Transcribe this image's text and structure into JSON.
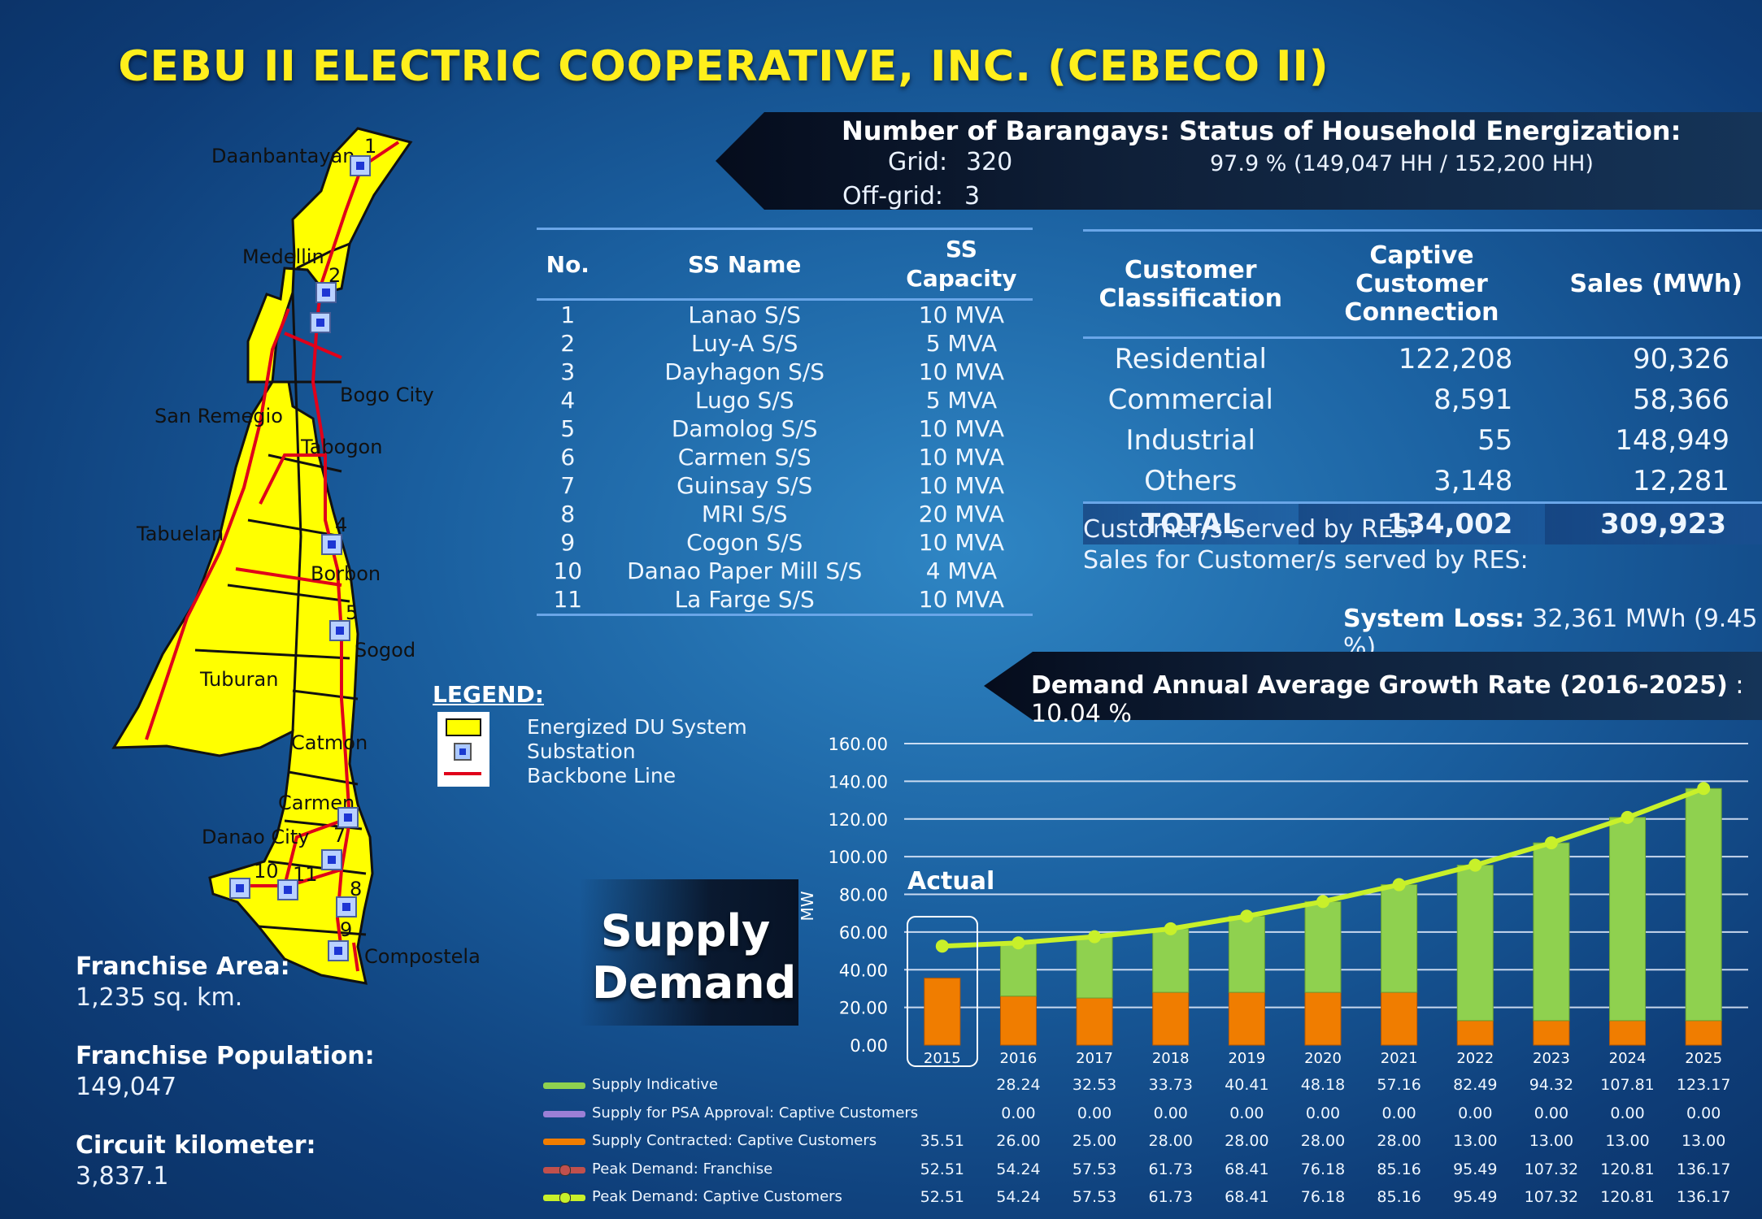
{
  "title": "CEBU II ELECTRIC COOPERATIVE, INC. (CEBECO II)",
  "barangays": {
    "label": "Number of Barangays:",
    "grid_label": "Grid:",
    "grid": "320",
    "offgrid_label": "Off-grid:",
    "offgrid": "3"
  },
  "energization": {
    "label": "Status of Household Energization:",
    "value": "97.9 % (149,047 HH / 152,200 HH)"
  },
  "ss_table": {
    "headers": {
      "no": "No.",
      "name": "SS Name",
      "cap1": "SS",
      "cap2": "Capacity"
    },
    "rows": [
      {
        "no": "1",
        "name": "Lanao S/S",
        "cap": "10 MVA"
      },
      {
        "no": "2",
        "name": "Luy-A S/S",
        "cap": "5 MVA"
      },
      {
        "no": "3",
        "name": "Dayhagon S/S",
        "cap": "10 MVA"
      },
      {
        "no": "4",
        "name": "Lugo S/S",
        "cap": "5 MVA"
      },
      {
        "no": "5",
        "name": "Damolog S/S",
        "cap": "10 MVA"
      },
      {
        "no": "6",
        "name": "Carmen S/S",
        "cap": "10 MVA"
      },
      {
        "no": "7",
        "name": "Guinsay S/S",
        "cap": "10 MVA"
      },
      {
        "no": "8",
        "name": "MRI S/S",
        "cap": "20 MVA"
      },
      {
        "no": "9",
        "name": "Cogon S/S",
        "cap": "10 MVA"
      },
      {
        "no": "10",
        "name": "Danao Paper Mill S/S",
        "cap": "4 MVA"
      },
      {
        "no": "11",
        "name": "La Farge S/S",
        "cap": "10 MVA"
      }
    ]
  },
  "customer_table": {
    "headers": {
      "cls1": "Customer",
      "cls2": "Classification",
      "conn1": "Captive Customer",
      "conn2": "Connection",
      "sales": "Sales (MWh)"
    },
    "rows": [
      {
        "cls": "Residential",
        "conn": "122,208",
        "sales": "90,326"
      },
      {
        "cls": "Commercial",
        "conn": "8,591",
        "sales": "58,366"
      },
      {
        "cls": "Industrial",
        "conn": "55",
        "sales": "148,949"
      },
      {
        "cls": "Others",
        "conn": "3,148",
        "sales": "12,281"
      }
    ],
    "total": {
      "cls": "TOTAL",
      "conn": "134,002",
      "sales": "309,923"
    }
  },
  "res": {
    "served": "Customer/s Served by RES:",
    "sales": "Sales for Customer/s served by RES:"
  },
  "system_loss": {
    "label": "System Loss:",
    "value": "32,361 MWh (9.45 %)"
  },
  "growth": {
    "label": "Demand Annual Average Growth Rate (2016-2025)",
    "value": ": 10.04 %"
  },
  "legend": {
    "title": "LEGEND:",
    "items": [
      "Energized DU System",
      "Substation",
      "Backbone Line"
    ]
  },
  "map_labels": {
    "daanbantayan": "Daanbantayan",
    "medellin": "Medellin",
    "bogo": "Bogo City",
    "san_remegio": "San Remegio",
    "tabogon": "Tabogon",
    "tabuelan": "Tabuelan",
    "borbon": "Borbon",
    "sogod": "Sogod",
    "tuburan": "Tuburan",
    "catmon": "Catmon",
    "carmen": "Carmen",
    "danao": "Danao City",
    "compostela": "Compostela"
  },
  "map_numbers": [
    "1",
    "2",
    "4",
    "5",
    "7",
    "8",
    "9",
    "10",
    "11"
  ],
  "franchise": {
    "area_label": "Franchise Area:",
    "area": "1,235 sq. km.",
    "pop_label": "Franchise Population:",
    "pop": "149,047",
    "ckm_label": "Circuit kilometer:",
    "ckm": "3,837.1"
  },
  "supply_demand": {
    "line1": "Supply",
    "line2": "Demand"
  },
  "colors": {
    "supply_indicative": "#8fd14f",
    "supply_contracted": "#f07d00",
    "peak_captive": "#c8f02a",
    "peak_franchise": "#c0504d",
    "psa": "#9b7fd6"
  },
  "chart_data": {
    "type": "bar",
    "ylabel": "MW",
    "ylim": [
      0,
      160
    ],
    "yticks": [
      "0.00",
      "20.00",
      "40.00",
      "60.00",
      "80.00",
      "100.00",
      "120.00",
      "140.00",
      "160.00"
    ],
    "annotation": "Actual",
    "categories": [
      "2015",
      "2016",
      "2017",
      "2018",
      "2019",
      "2020",
      "2021",
      "2022",
      "2023",
      "2024",
      "2025"
    ],
    "series": [
      {
        "name": "Supply Indicative",
        "values": [
          null,
          28.24,
          32.53,
          33.73,
          40.41,
          48.18,
          57.16,
          82.49,
          94.32,
          107.81,
          123.17
        ],
        "labels": [
          "",
          "28.24",
          "32.53",
          "33.73",
          "40.41",
          "48.18",
          "57.16",
          "82.49",
          "94.32",
          "107.81",
          "123.17"
        ]
      },
      {
        "name": "Supply for PSA Approval:  Captive Customers",
        "values": [
          null,
          0,
          0,
          0,
          0,
          0,
          0,
          0,
          0,
          0,
          0
        ],
        "labels": [
          "",
          "0.00",
          "0.00",
          "0.00",
          "0.00",
          "0.00",
          "0.00",
          "0.00",
          "0.00",
          "0.00",
          "0.00"
        ]
      },
      {
        "name": "Supply Contracted:  Captive Customers",
        "values": [
          35.51,
          26.0,
          25.0,
          28.0,
          28.0,
          28.0,
          28.0,
          13.0,
          13.0,
          13.0,
          13.0
        ],
        "labels": [
          "35.51",
          "26.00",
          "25.00",
          "28.00",
          "28.00",
          "28.00",
          "28.00",
          "13.00",
          "13.00",
          "13.00",
          "13.00"
        ]
      },
      {
        "name": "Peak Demand:  Franchise",
        "values": [
          52.51,
          54.24,
          57.53,
          61.73,
          68.41,
          76.18,
          85.16,
          95.49,
          107.32,
          120.81,
          136.17
        ],
        "labels": [
          "52.51",
          "54.24",
          "57.53",
          "61.73",
          "68.41",
          "76.18",
          "85.16",
          "95.49",
          "107.32",
          "120.81",
          "136.17"
        ]
      },
      {
        "name": "Peak Demand:  Captive Customers",
        "values": [
          52.51,
          54.24,
          57.53,
          61.73,
          68.41,
          76.18,
          85.16,
          95.49,
          107.32,
          120.81,
          136.17
        ],
        "labels": [
          "52.51",
          "54.24",
          "57.53",
          "61.73",
          "68.41",
          "76.18",
          "85.16",
          "95.49",
          "107.32",
          "120.81",
          "136.17"
        ]
      }
    ]
  }
}
